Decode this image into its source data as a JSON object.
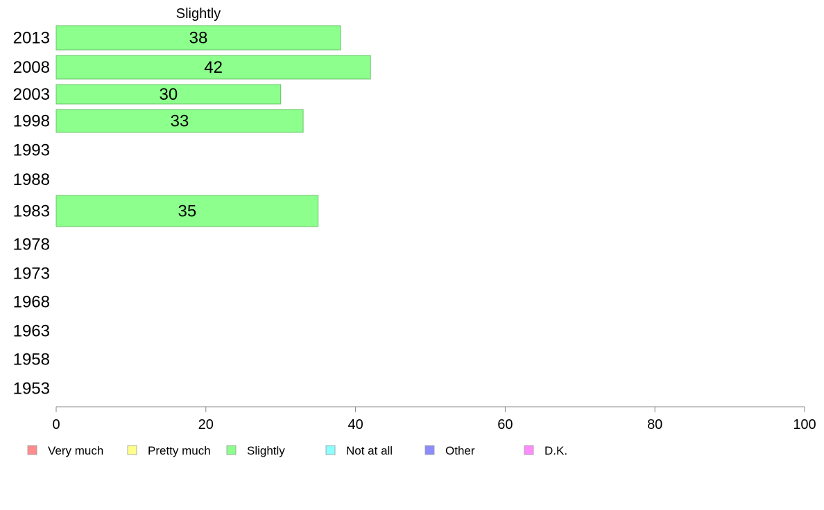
{
  "chart_data": {
    "type": "bar",
    "orientation": "horizontal",
    "title": "Slightly",
    "categories": [
      "2013",
      "2008",
      "2003",
      "1998",
      "1993",
      "1988",
      "1983",
      "1978",
      "1973",
      "1968",
      "1963",
      "1958",
      "1953"
    ],
    "series": [
      {
        "name": "Slightly",
        "color": "#8cff8c",
        "values": [
          38,
          42,
          30,
          33,
          null,
          null,
          35,
          null,
          null,
          null,
          null,
          null,
          null
        ]
      }
    ],
    "xlim": [
      0,
      100
    ],
    "xticks": [
      "0",
      "20",
      "40",
      "60",
      "80",
      "100"
    ],
    "grid": false,
    "legend_position": "bottom",
    "legend": [
      {
        "label": "Very much",
        "color": "#ff8c8c"
      },
      {
        "label": "Pretty much",
        "color": "#ffff8c"
      },
      {
        "label": "Slightly",
        "color": "#8cff8c"
      },
      {
        "label": "Not at all",
        "color": "#8cffff"
      },
      {
        "label": "Other",
        "color": "#8c8cff"
      },
      {
        "label": "D.K.",
        "color": "#ff8cff"
      }
    ]
  }
}
